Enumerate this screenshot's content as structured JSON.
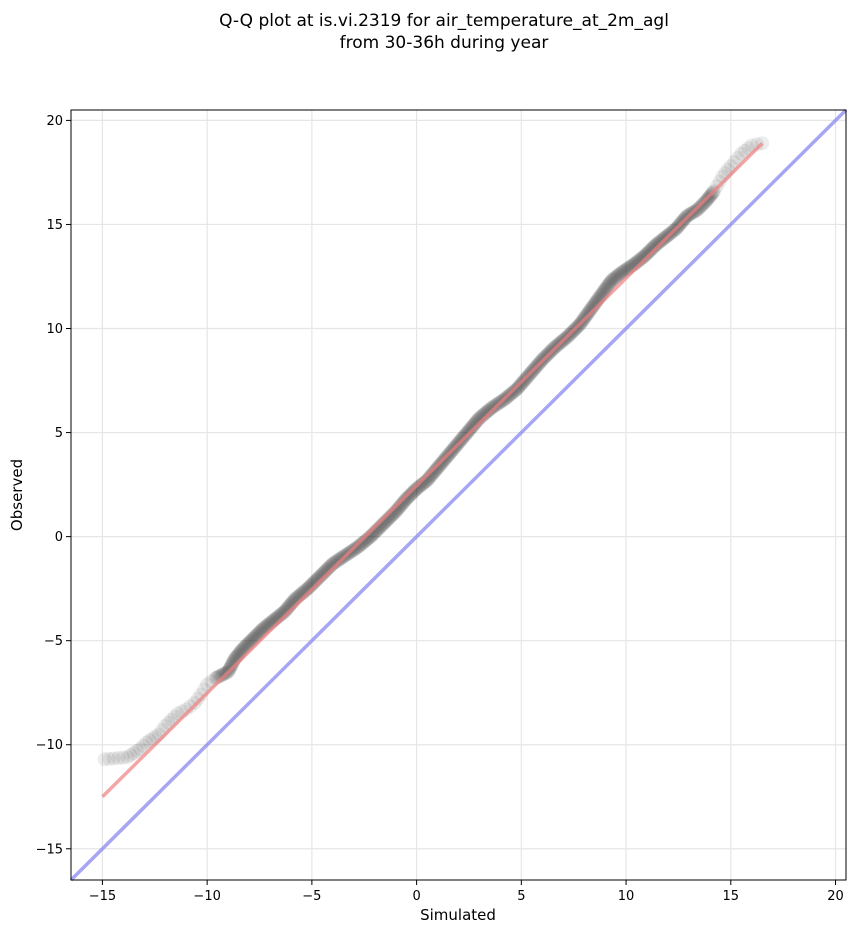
{
  "chart_data": {
    "type": "scatter",
    "title_lines": [
      "Q-Q plot at is.vi.2319 for air_temperature_at_2m_agl",
      "from 30-36h during year"
    ],
    "xlabel": "Simulated",
    "ylabel": "Observed",
    "xlim": [
      -16.5,
      20.5
    ],
    "ylim": [
      -16.5,
      20.5
    ],
    "xticks": [
      -15,
      -10,
      -5,
      0,
      5,
      10,
      15,
      20
    ],
    "yticks": [
      -15,
      -10,
      -5,
      0,
      5,
      10,
      15,
      20
    ],
    "xtick_labels": [
      "−15",
      "−10",
      "−5",
      "0",
      "5",
      "10",
      "15",
      "20"
    ],
    "ytick_labels": [
      "−15",
      "−10",
      "−5",
      "0",
      "5",
      "10",
      "15",
      "20"
    ],
    "grid": true,
    "legend": "none",
    "colors": {
      "points": "#000000",
      "fit_line": "#f08080",
      "identity_line": "#8080f0",
      "grid": "#e6e6e6"
    },
    "quantile_curve": [
      [
        -14.9,
        -10.7
      ],
      [
        -13.8,
        -10.6
      ],
      [
        -13.5,
        -10.4
      ],
      [
        -13.2,
        -10.2
      ],
      [
        -12.9,
        -9.9
      ],
      [
        -12.6,
        -9.7
      ],
      [
        -12.3,
        -9.5
      ],
      [
        -12.0,
        -9.1
      ],
      [
        -11.7,
        -8.8
      ],
      [
        -11.4,
        -8.5
      ],
      [
        -11.0,
        -8.3
      ],
      [
        -10.6,
        -8.0
      ],
      [
        -10.3,
        -7.6
      ],
      [
        -10.0,
        -7.1
      ],
      [
        -9.6,
        -6.8
      ],
      [
        -9.0,
        -6.5
      ],
      [
        -8.7,
        -5.9
      ],
      [
        -8.3,
        -5.4
      ],
      [
        -7.8,
        -4.9
      ],
      [
        -7.3,
        -4.4
      ],
      [
        -6.8,
        -4.0
      ],
      [
        -6.3,
        -3.6
      ],
      [
        -5.8,
        -3.0
      ],
      [
        -5.2,
        -2.5
      ],
      [
        -4.6,
        -1.9
      ],
      [
        -4.0,
        -1.3
      ],
      [
        -3.4,
        -0.9
      ],
      [
        -2.8,
        -0.5
      ],
      [
        -2.2,
        0.0
      ],
      [
        -1.6,
        0.6
      ],
      [
        -1.0,
        1.2
      ],
      [
        -0.5,
        1.8
      ],
      [
        0.0,
        2.3
      ],
      [
        0.5,
        2.7
      ],
      [
        1.0,
        3.3
      ],
      [
        1.5,
        3.9
      ],
      [
        2.0,
        4.5
      ],
      [
        2.5,
        5.1
      ],
      [
        3.0,
        5.7
      ],
      [
        3.6,
        6.2
      ],
      [
        4.2,
        6.6
      ],
      [
        4.8,
        7.1
      ],
      [
        5.4,
        7.8
      ],
      [
        6.0,
        8.5
      ],
      [
        6.6,
        9.1
      ],
      [
        7.2,
        9.6
      ],
      [
        7.8,
        10.2
      ],
      [
        8.3,
        10.9
      ],
      [
        8.8,
        11.6
      ],
      [
        9.3,
        12.3
      ],
      [
        9.8,
        12.7
      ],
      [
        10.4,
        13.1
      ],
      [
        10.9,
        13.5
      ],
      [
        11.4,
        14.0
      ],
      [
        11.9,
        14.4
      ],
      [
        12.4,
        14.8
      ],
      [
        12.9,
        15.4
      ],
      [
        13.4,
        15.7
      ],
      [
        13.8,
        16.1
      ],
      [
        14.2,
        16.6
      ],
      [
        14.6,
        17.3
      ],
      [
        15.0,
        17.8
      ],
      [
        15.5,
        18.4
      ],
      [
        16.0,
        18.8
      ],
      [
        16.5,
        18.9
      ]
    ],
    "fit_line": {
      "from": [
        -15.0,
        -12.5
      ],
      "to": [
        16.5,
        18.9
      ]
    },
    "identity_line": {
      "from": [
        -16.5,
        -16.5
      ],
      "to": [
        20.5,
        20.5
      ]
    }
  }
}
